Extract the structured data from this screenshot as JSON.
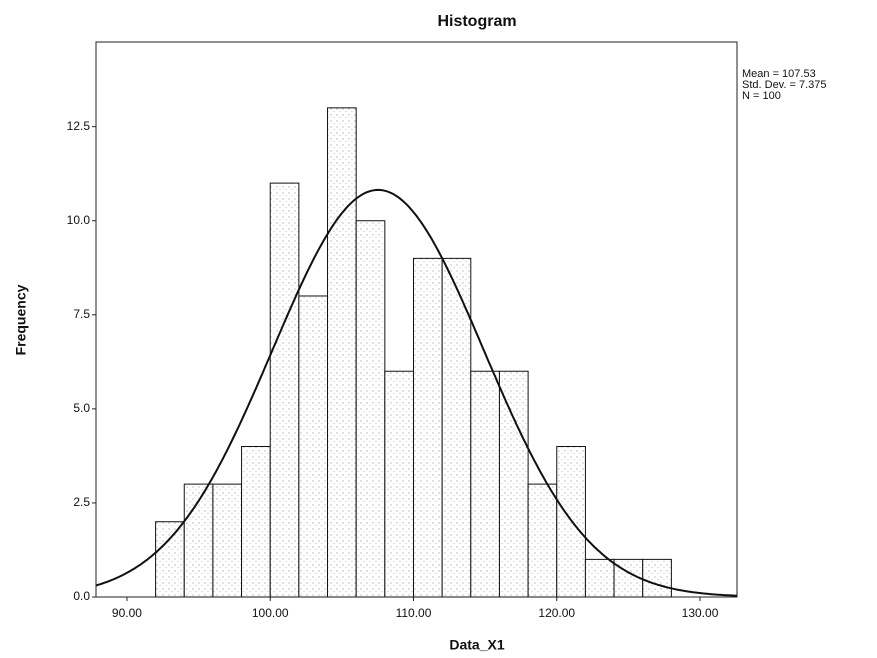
{
  "chart_data": {
    "type": "histogram",
    "title": "Histogram",
    "x_label": "Data_X1",
    "y_label": "Frequency",
    "bins": [
      92,
      94,
      96,
      98,
      100,
      102,
      104,
      106,
      108,
      110,
      112,
      114,
      116,
      118,
      120,
      122,
      124,
      126,
      128
    ],
    "values": [
      2,
      3,
      3,
      4,
      11,
      8,
      13,
      10,
      6,
      9,
      9,
      6,
      6,
      3,
      4,
      1,
      1,
      1
    ],
    "xlim": [
      87.84,
      132.58
    ],
    "xticks": [
      {
        "value": 90,
        "label": "90.00"
      },
      {
        "value": 100,
        "label": "100.00"
      },
      {
        "value": 110,
        "label": "110.00"
      },
      {
        "value": 120,
        "label": "120.00"
      },
      {
        "value": 130,
        "label": "130.00"
      }
    ],
    "ylim": [
      0,
      14.75
    ],
    "yticks": [
      {
        "value": 0,
        "label": "0.0"
      },
      {
        "value": 2.5,
        "label": "2.5"
      },
      {
        "value": 5,
        "label": "5.0"
      },
      {
        "value": 7.5,
        "label": "7.5"
      },
      {
        "value": 10,
        "label": "10.0"
      },
      {
        "value": 12.5,
        "label": "12.5"
      }
    ],
    "stats": [
      {
        "label": "Mean = 107.53",
        "value": 107.53
      },
      {
        "label": "Std. Dev. = 7.375",
        "value": 7.375
      },
      {
        "label": "N = 100",
        "value": 100
      }
    ],
    "normal_curve": true
  }
}
